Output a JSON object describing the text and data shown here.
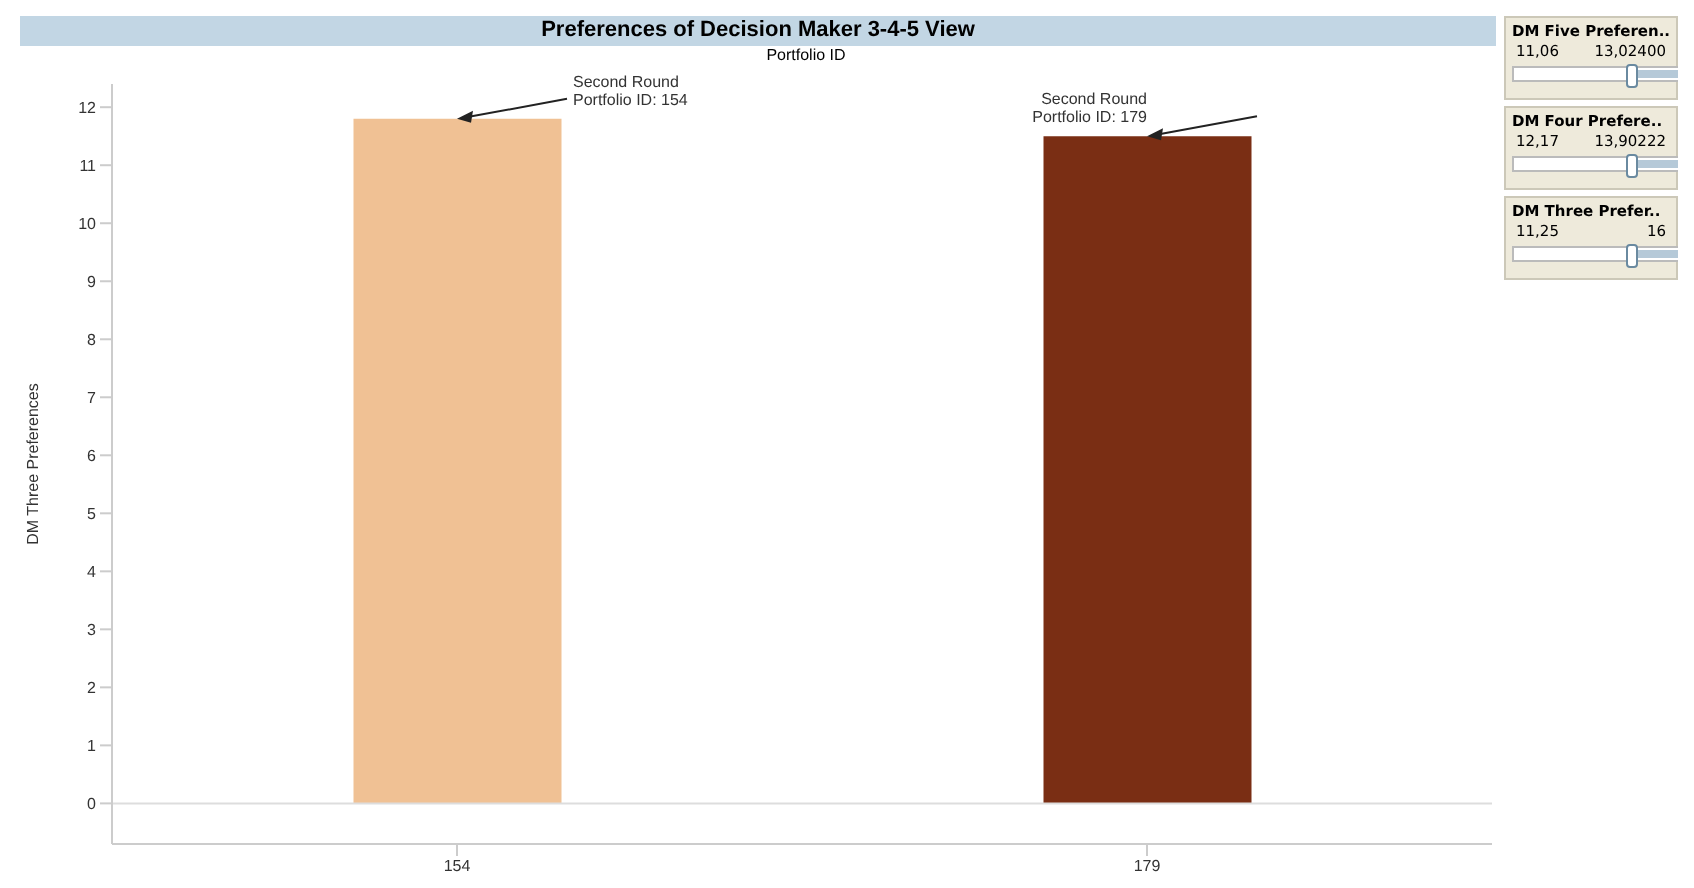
{
  "chart_data": [
    {
      "type": "bar",
      "title": "Preferences of Decision Maker 3-4-5 View",
      "xlabel": "Portfolio ID",
      "ylabel": "DM Three Preferences",
      "categories": [
        "154",
        "179"
      ],
      "values": [
        11.8,
        11.5
      ],
      "colors": [
        "#f0c194",
        "#7a2e14"
      ],
      "ylim": [
        -0.7,
        12.4
      ],
      "yticks": [
        0,
        1,
        2,
        3,
        4,
        5,
        6,
        7,
        8,
        9,
        10,
        11,
        12
      ],
      "grid": false,
      "legend": false,
      "ref_lines": [
        {
          "axis": "y",
          "value": 0,
          "color": "#dddddd"
        }
      ],
      "annotations": [
        {
          "text": "Second Round\nPortfolio ID: 154",
          "x": "154",
          "y": 11.8
        },
        {
          "text": "Second Round\nPortfolio ID: 179",
          "x": "179",
          "y": 11.5
        }
      ]
    },
    {
      "type": "other",
      "annotations": [
        "DM Five Preferen..",
        "11,06",
        "13,02400",
        "DM Four Prefere..",
        "12,17",
        "13,90222",
        "DM Three Prefer..",
        "11,25",
        "16"
      ]
    }
  ]
}
